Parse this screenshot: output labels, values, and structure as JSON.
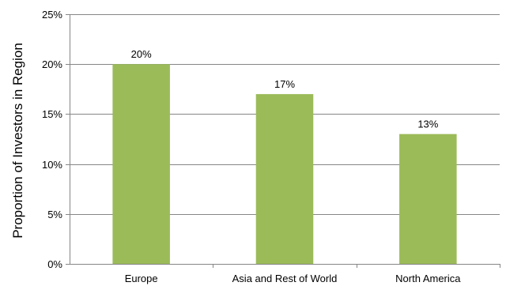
{
  "chart_data": {
    "type": "bar",
    "title": "",
    "xlabel": "",
    "ylabel": "Proportion of Investors in Region",
    "categories": [
      "Europe",
      "Asia and Rest of World",
      "North America"
    ],
    "values": [
      20,
      17,
      13
    ],
    "data_labels": [
      "20%",
      "17%",
      "13%"
    ],
    "ylim": [
      0,
      25
    ],
    "yticks": [
      0,
      5,
      10,
      15,
      20,
      25
    ],
    "ytick_labels": [
      "0%",
      "5%",
      "10%",
      "15%",
      "20%",
      "25%"
    ],
    "grid": true,
    "legend": "none",
    "colors": {
      "bar": "#9BBB59",
      "grid": "#868686",
      "axis": "#868686"
    }
  }
}
